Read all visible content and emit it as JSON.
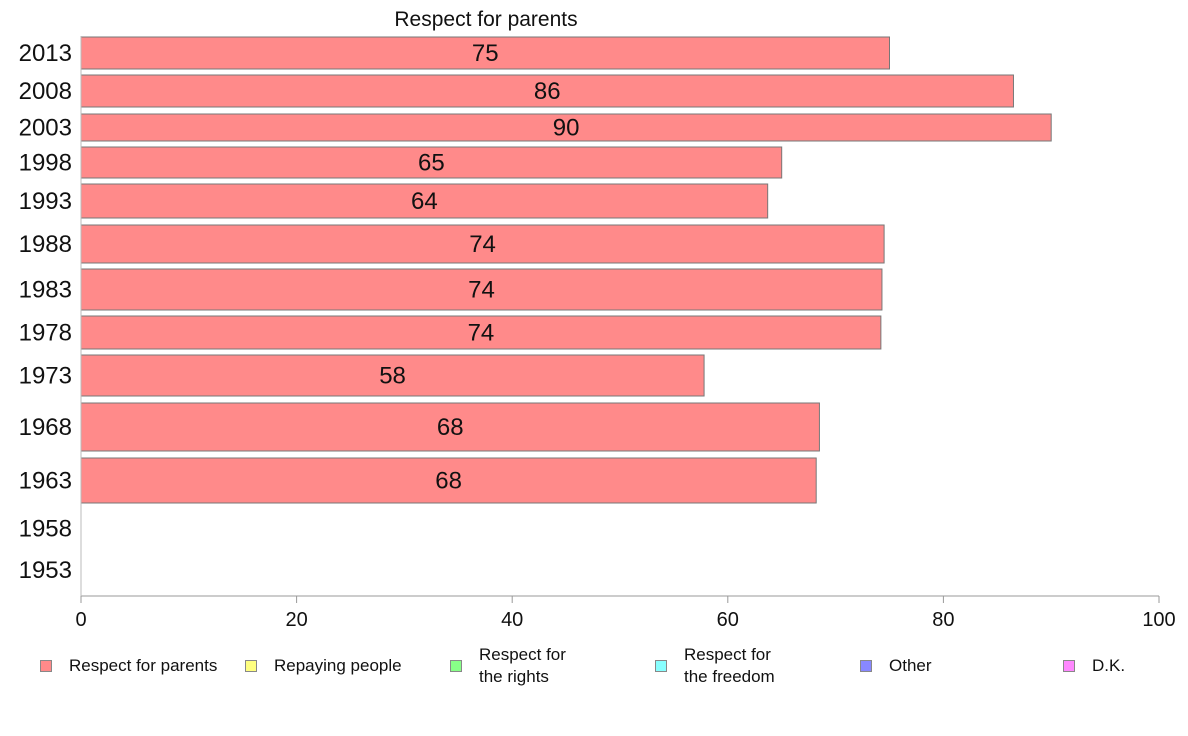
{
  "chart_data": {
    "type": "bar",
    "orientation": "horizontal",
    "title": "Respect for parents",
    "categories": [
      "2013",
      "2008",
      "2003",
      "1998",
      "1993",
      "1988",
      "1983",
      "1978",
      "1973",
      "1968",
      "1963",
      "1958",
      "1953"
    ],
    "series": [
      {
        "name": "Respect for parents",
        "color": "#ff8a8a",
        "values": [
          75,
          86.5,
          90,
          65,
          63.7,
          74.5,
          74.3,
          74.2,
          57.8,
          68.5,
          68.2,
          null,
          null
        ],
        "labels": [
          "75",
          "86",
          "90",
          "65",
          "64",
          "74",
          "74",
          "74",
          "58",
          "68",
          "68",
          "",
          ""
        ]
      }
    ],
    "xlim": [
      0,
      100
    ],
    "xticks": [
      "0",
      "20",
      "40",
      "60",
      "80",
      "100"
    ],
    "grid": false,
    "legend_position": "bottom"
  },
  "legend": [
    {
      "label": "Respect for parents",
      "color": "#ff8a8a"
    },
    {
      "label": "Repaying people",
      "color": "#ffff80"
    },
    {
      "label": "Respect for\nthe rights",
      "color": "#88ff88"
    },
    {
      "label": "Respect for\nthe freedom",
      "color": "#88ffff"
    },
    {
      "label": "Other",
      "color": "#8888ff"
    },
    {
      "label": "D.K.",
      "color": "#ff88ff"
    }
  ]
}
